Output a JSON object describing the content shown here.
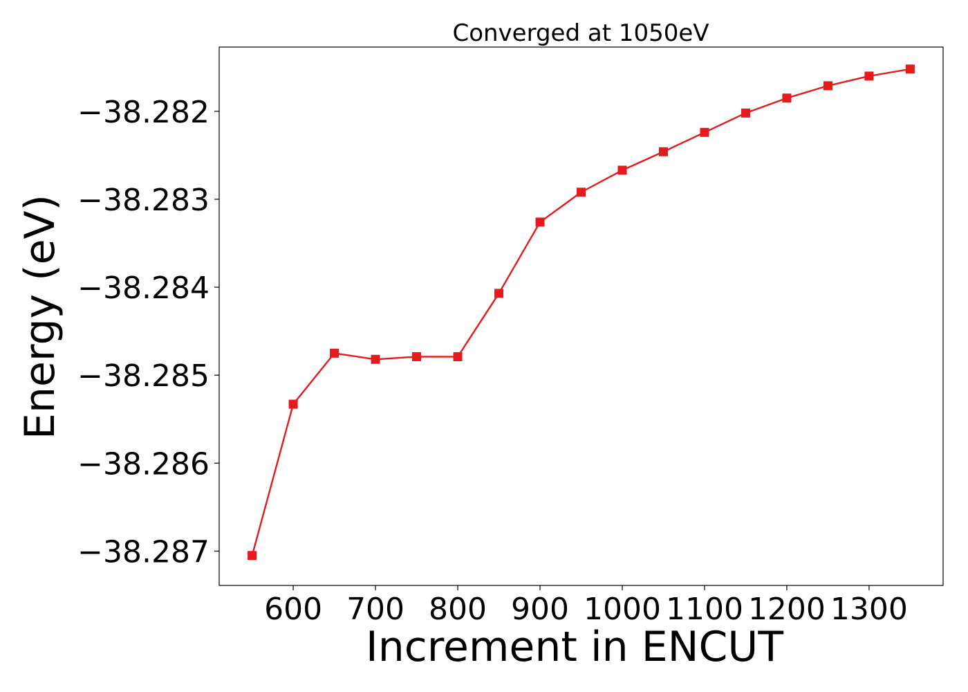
{
  "chart_data": {
    "type": "line",
    "title": "Converged at 1050eV",
    "xlabel": "Increment in ENCUT",
    "ylabel": "Energy (eV)",
    "x": [
      550,
      600,
      650,
      700,
      750,
      800,
      850,
      900,
      950,
      1000,
      1050,
      1100,
      1150,
      1200,
      1250,
      1300,
      1350
    ],
    "series": [
      {
        "values": [
          -38.28705,
          -38.28533,
          -38.28475,
          -38.28482,
          -38.28479,
          -38.28479,
          -38.28407,
          -38.28326,
          -38.28292,
          -38.28267,
          -38.28246,
          -38.28224,
          -38.28202,
          -38.28185,
          -38.28171,
          -38.2816,
          -38.28152
        ],
        "color": "#e41a1c",
        "marker": "square"
      }
    ],
    "xlim": [
      510,
      1390
    ],
    "ylim": [
      -38.28739,
      -38.28127
    ],
    "xticks": [
      {
        "value": 600,
        "label": "600"
      },
      {
        "value": 700,
        "label": "700"
      },
      {
        "value": 800,
        "label": "800"
      },
      {
        "value": 900,
        "label": "900"
      },
      {
        "value": 1000,
        "label": "1000"
      },
      {
        "value": 1100,
        "label": "1100"
      },
      {
        "value": 1200,
        "label": "1200"
      },
      {
        "value": 1300,
        "label": "1300"
      }
    ],
    "yticks": [
      {
        "value": -38.287,
        "label": "−38.287"
      },
      {
        "value": -38.286,
        "label": "−38.286"
      },
      {
        "value": -38.285,
        "label": "−38.285"
      },
      {
        "value": -38.284,
        "label": "−38.284"
      },
      {
        "value": -38.283,
        "label": "−38.283"
      },
      {
        "value": -38.282,
        "label": "−38.282"
      }
    ],
    "grid": false,
    "legend": "none"
  }
}
